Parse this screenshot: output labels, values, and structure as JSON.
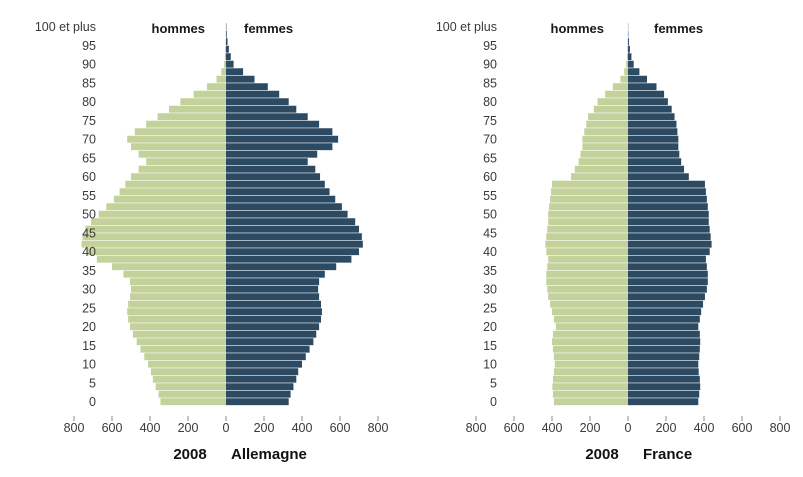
{
  "colors": {
    "men": "#c3d19a",
    "women": "#2d4a63",
    "text": "#3a3a3a",
    "axis": "#888888"
  },
  "chart_data": [
    {
      "type": "bar",
      "orientation": "population-pyramid",
      "country": "Allemagne",
      "year": "2008",
      "men_label": "hommes",
      "women_label": "femmes",
      "age_labels": [
        "0",
        "5",
        "10",
        "15",
        "20",
        "25",
        "30",
        "35",
        "40",
        "45",
        "50",
        "55",
        "60",
        "65",
        "70",
        "75",
        "80",
        "85",
        "90",
        "95",
        "100 et plus"
      ],
      "x_ticks": [
        "800",
        "600",
        "400",
        "200",
        "0",
        "200",
        "400",
        "600",
        "800"
      ],
      "xlim": [
        0,
        800
      ],
      "series": [
        {
          "name": "hommes",
          "ages": [
            0,
            2,
            4,
            6,
            8,
            10,
            12,
            14,
            16,
            18,
            20,
            22,
            24,
            26,
            28,
            30,
            32,
            34,
            36,
            38,
            40,
            42,
            44,
            46,
            48,
            50,
            52,
            54,
            56,
            58,
            60,
            62,
            64,
            66,
            68,
            70,
            72,
            74,
            76,
            78,
            80,
            82,
            84,
            86,
            88,
            90,
            92,
            94,
            96,
            98,
            100
          ],
          "values": [
            345,
            355,
            370,
            385,
            395,
            410,
            430,
            450,
            470,
            490,
            505,
            515,
            520,
            515,
            505,
            500,
            505,
            540,
            600,
            680,
            730,
            760,
            755,
            740,
            710,
            670,
            630,
            590,
            560,
            530,
            500,
            460,
            420,
            460,
            500,
            520,
            480,
            420,
            360,
            300,
            240,
            170,
            100,
            50,
            25,
            10,
            6,
            4,
            2,
            1,
            1
          ]
        },
        {
          "name": "femmes",
          "ages": [
            0,
            2,
            4,
            6,
            8,
            10,
            12,
            14,
            16,
            18,
            20,
            22,
            24,
            26,
            28,
            30,
            32,
            34,
            36,
            38,
            40,
            42,
            44,
            46,
            48,
            50,
            52,
            54,
            56,
            58,
            60,
            62,
            64,
            66,
            68,
            70,
            72,
            74,
            76,
            78,
            80,
            82,
            84,
            86,
            88,
            90,
            92,
            94,
            96,
            98,
            100
          ],
          "values": [
            330,
            340,
            355,
            370,
            380,
            400,
            420,
            440,
            460,
            475,
            490,
            500,
            505,
            500,
            490,
            485,
            490,
            520,
            580,
            660,
            700,
            720,
            715,
            700,
            680,
            640,
            610,
            575,
            545,
            520,
            495,
            470,
            430,
            480,
            560,
            590,
            560,
            490,
            430,
            370,
            330,
            280,
            220,
            150,
            90,
            40,
            25,
            15,
            8,
            4,
            2
          ]
        }
      ]
    },
    {
      "type": "bar",
      "orientation": "population-pyramid",
      "country": "France",
      "year": "2008",
      "men_label": "hommes",
      "women_label": "femmes",
      "age_labels": [
        "0",
        "5",
        "10",
        "15",
        "20",
        "25",
        "30",
        "35",
        "40",
        "45",
        "50",
        "55",
        "60",
        "65",
        "70",
        "75",
        "80",
        "85",
        "90",
        "95",
        "100 et plus"
      ],
      "x_ticks": [
        "800",
        "600",
        "400",
        "200",
        "0",
        "200",
        "400",
        "600",
        "800"
      ],
      "xlim": [
        0,
        800
      ],
      "series": [
        {
          "name": "hommes",
          "ages": [
            0,
            2,
            4,
            6,
            8,
            10,
            12,
            14,
            16,
            18,
            20,
            22,
            24,
            26,
            28,
            30,
            32,
            34,
            36,
            38,
            40,
            42,
            44,
            46,
            48,
            50,
            52,
            54,
            56,
            58,
            60,
            62,
            64,
            66,
            68,
            70,
            72,
            74,
            76,
            78,
            80,
            82,
            84,
            86,
            88,
            90,
            92,
            94,
            96,
            98,
            100
          ],
          "values": [
            390,
            395,
            398,
            395,
            390,
            385,
            390,
            395,
            400,
            395,
            380,
            390,
            400,
            410,
            420,
            425,
            430,
            430,
            425,
            420,
            430,
            435,
            430,
            425,
            420,
            420,
            415,
            410,
            405,
            400,
            300,
            280,
            260,
            250,
            240,
            240,
            230,
            220,
            210,
            180,
            160,
            120,
            80,
            40,
            20,
            10,
            5,
            3,
            2,
            1,
            1
          ]
        },
        {
          "name": "femmes",
          "ages": [
            0,
            2,
            4,
            6,
            8,
            10,
            12,
            14,
            16,
            18,
            20,
            22,
            24,
            26,
            28,
            30,
            32,
            34,
            36,
            38,
            40,
            42,
            44,
            46,
            48,
            50,
            52,
            54,
            56,
            58,
            60,
            62,
            64,
            66,
            68,
            70,
            72,
            74,
            76,
            78,
            80,
            82,
            84,
            86,
            88,
            90,
            92,
            94,
            96,
            98,
            100
          ],
          "values": [
            370,
            375,
            380,
            378,
            372,
            370,
            375,
            378,
            380,
            378,
            370,
            378,
            385,
            395,
            405,
            415,
            420,
            420,
            415,
            410,
            430,
            440,
            435,
            430,
            425,
            425,
            420,
            415,
            410,
            405,
            320,
            295,
            280,
            270,
            265,
            265,
            260,
            255,
            245,
            230,
            210,
            190,
            150,
            100,
            60,
            30,
            18,
            10,
            5,
            2,
            1
          ]
        }
      ]
    }
  ]
}
